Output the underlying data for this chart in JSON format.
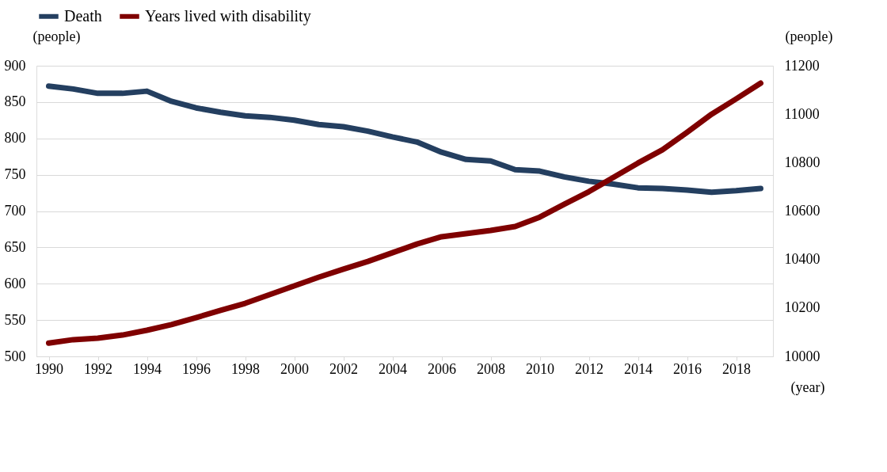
{
  "chart_data": {
    "type": "line",
    "xlabel": "(year)",
    "ylabel": "(people)",
    "y2label": "(people)",
    "x": [
      1990,
      1991,
      1992,
      1993,
      1994,
      1995,
      1996,
      1997,
      1998,
      1999,
      2000,
      2001,
      2002,
      2003,
      2004,
      2005,
      2006,
      2007,
      2008,
      2009,
      2010,
      2011,
      2012,
      2013,
      2014,
      2015,
      2016,
      2017,
      2018,
      2019
    ],
    "series": [
      {
        "name": "Death",
        "color": "#243f60",
        "values": [
          872,
          868,
          862,
          862,
          865,
          851,
          842,
          836,
          831,
          829,
          825,
          819,
          816,
          810,
          802,
          795,
          781,
          771,
          769,
          757,
          755,
          747,
          741,
          737,
          732,
          731,
          729,
          726,
          728,
          731
        ]
      },
      {
        "name": "Years lived with disability",
        "color": "#7f0000",
        "axis": "y2",
        "values": [
          10055,
          10069,
          10075,
          10088,
          10108,
          10131,
          10160,
          10190,
          10219,
          10255,
          10291,
          10327,
          10360,
          10392,
          10428,
          10464,
          10494,
          10507,
          10520,
          10536,
          10575,
          10628,
          10680,
          10739,
          10798,
          10853,
          10925,
          11000,
          11063,
          11128
        ]
      }
    ],
    "xlim": [
      1989.5,
      2019.5
    ],
    "xticks": [
      1990,
      1992,
      1994,
      1996,
      1998,
      2000,
      2002,
      2004,
      2006,
      2008,
      2010,
      2012,
      2014,
      2016,
      2018
    ],
    "ylim": [
      500,
      900
    ],
    "yticks": [
      500,
      550,
      600,
      650,
      700,
      750,
      800,
      850,
      900
    ],
    "y2lim": [
      10000,
      11200
    ],
    "y2ticks": [
      10000,
      10200,
      10400,
      10600,
      10800,
      11000,
      11200
    ],
    "grid": "y",
    "legend": "top",
    "marker": "none",
    "line_style": "solid"
  }
}
